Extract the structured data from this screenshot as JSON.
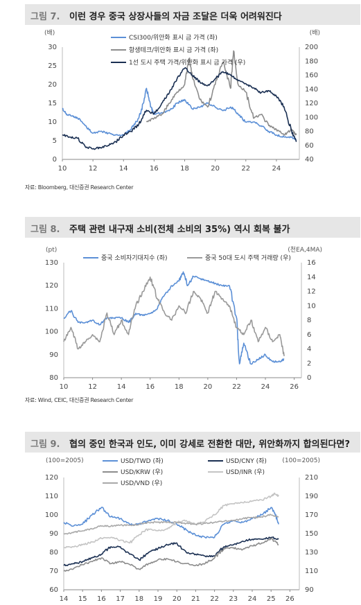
{
  "figures": [
    {
      "number": "그림 7.",
      "title": "이런 경우 중국 상장사들의 자금 조달은 더욱 어려워진다",
      "source": "자료: Bloomberg, 대신증권 Research Center",
      "left_unit": "(배)",
      "right_unit": "(배)",
      "x_ticks": [
        "10",
        "12",
        "14",
        "16",
        "18",
        "20",
        "22",
        "24"
      ],
      "y_ticks_left": [
        "0",
        "5",
        "10",
        "15",
        "20",
        "25",
        "30"
      ],
      "y_ticks_right": [
        "40",
        "60",
        "80",
        "100",
        "120",
        "140",
        "160",
        "180",
        "200"
      ],
      "legend": [
        "CSI300/위안화 표시 금 가격 (좌)",
        "항생테크/위안화 표시 금 가격 (좌)",
        "1선 도시 주택 가격/위안화 표시 금 가격 (우)"
      ],
      "colors": [
        "#5b8fd6",
        "#8c8c8c",
        "#1a2f52"
      ]
    },
    {
      "number": "그림 8.",
      "title": "주택 관련 내구재 소비(전체 소비의 35%) 역시 회복 불가",
      "source": "자료: Wind, CEIC, 대신증권 Research Center",
      "left_unit": "(pt)",
      "right_unit": "(천EA,4MA)",
      "x_ticks": [
        "10",
        "12",
        "14",
        "16",
        "18",
        "20",
        "22",
        "24",
        "26"
      ],
      "y_ticks_left": [
        "80",
        "90",
        "100",
        "110",
        "120",
        "130"
      ],
      "y_ticks_right": [
        "0",
        "2",
        "4",
        "6",
        "8",
        "10",
        "12",
        "14",
        "16"
      ],
      "legend": [
        "중국 소비자기대지수 (좌)",
        "중국 50대 도시 주택 거래량 (우)"
      ],
      "colors": [
        "#5b8fd6",
        "#999999"
      ]
    },
    {
      "number": "그림 9.",
      "title": "협의 중인 한국과 인도, 이미 강세로 전환한 대만, 위안화까지 합의된다면?",
      "source": "",
      "left_unit": "(100=2005)",
      "right_unit": "(100=2005)",
      "x_ticks": [
        "14",
        "15",
        "16",
        "17",
        "18",
        "19",
        "20",
        "21",
        "22",
        "23",
        "24",
        "25",
        "26"
      ],
      "y_ticks_left": [
        "60",
        "70",
        "80",
        "90",
        "100",
        "110",
        "120"
      ],
      "y_ticks_right": [
        "90",
        "110",
        "130",
        "150",
        "170",
        "190",
        "210"
      ],
      "legend": [
        "USD/TWD (좌)",
        "USD/CNY (좌)",
        "USD/KRW (우)",
        "USD/INR (우)",
        "USD/VND (우)"
      ],
      "colors": [
        "#5b8fd6",
        "#1a2f52",
        "#8c8c8c",
        "#c4c4c4",
        "#a8a8a8"
      ]
    }
  ],
  "chart_data": [
    {
      "type": "line",
      "title": "이런 경우 중국 상장사들의 자금 조달은 더욱 어려워진다",
      "x_range": [
        10,
        25.5
      ],
      "ylim_left": [
        0,
        30
      ],
      "ylim_right": [
        40,
        200
      ],
      "series": [
        {
          "name": "CSI300/위안화 표시 금 가격 (좌)",
          "axis": "left",
          "x": [
            10,
            10.3,
            10.7,
            11,
            11.5,
            12,
            12.5,
            13,
            13.5,
            14,
            14.5,
            15,
            15.3,
            15.5,
            15.8,
            16,
            16.5,
            17,
            17.5,
            18,
            18.5,
            19,
            19.5,
            20,
            20.5,
            21,
            21.2,
            21.5,
            22,
            22.5,
            23,
            23.5,
            24,
            24.5,
            25,
            25.3
          ],
          "y": [
            13.5,
            12,
            11.5,
            11,
            9,
            7,
            7.5,
            7,
            6.5,
            6.5,
            8,
            11,
            15,
            19,
            14,
            12,
            12.5,
            13,
            15,
            16,
            13.5,
            14,
            15,
            14,
            13,
            14,
            13.5,
            12,
            10,
            10,
            9,
            7.5,
            6.5,
            6,
            6,
            5
          ]
        },
        {
          "name": "항생테크/위안화 표시 금 가격 (좌)",
          "axis": "left",
          "x": [
            15.5,
            16,
            16.5,
            17,
            17.5,
            18,
            18.3,
            18.5,
            19,
            19.5,
            20,
            20.5,
            21,
            21.2,
            21.5,
            22,
            22.5,
            23,
            23.5,
            24,
            24.5,
            25,
            25.3
          ],
          "y": [
            10,
            11,
            12,
            15,
            18,
            20,
            27,
            22,
            16,
            14,
            20,
            26,
            19,
            29,
            20,
            18,
            11,
            12,
            9,
            8,
            6.5,
            8,
            6.5
          ]
        },
        {
          "name": "1선 도시 주택 가격/위안화 표시 금 가격 (우)",
          "axis": "right",
          "x": [
            10,
            10.5,
            11,
            11.5,
            12,
            12.5,
            13,
            13.5,
            14,
            14.5,
            15,
            15.5,
            16,
            16.5,
            17,
            17.5,
            18,
            18.5,
            19,
            19.5,
            20,
            20.5,
            21,
            21.5,
            22,
            22.5,
            23,
            23.5,
            24,
            24.5,
            25,
            25.3
          ],
          "y": [
            75,
            72,
            70,
            58,
            55,
            57,
            60,
            65,
            75,
            80,
            90,
            110,
            105,
            120,
            135,
            155,
            170,
            160,
            150,
            145,
            155,
            165,
            160,
            152,
            148,
            142,
            135,
            138,
            130,
            115,
            80,
            65
          ]
        }
      ]
    },
    {
      "type": "line",
      "title": "주택 관련 내구재 소비(전체 소비의 35%) 역시 회복 불가",
      "x_range": [
        10,
        26.5
      ],
      "ylim_left": [
        80,
        130
      ],
      "ylim_right": [
        0,
        16
      ],
      "series": [
        {
          "name": "중국 소비자기대지수 (좌)",
          "axis": "left",
          "x": [
            10,
            10.5,
            11,
            11.5,
            12,
            12.5,
            13,
            13.5,
            14,
            14.5,
            15,
            15.5,
            16,
            16.5,
            17,
            17.5,
            18,
            18.3,
            18.6,
            19,
            19.5,
            20,
            20.5,
            21,
            21.5,
            22,
            22.2,
            22.5,
            23,
            23.5,
            24,
            24.5,
            25,
            25.3
          ],
          "y": [
            106,
            109,
            104,
            104,
            105,
            103,
            106,
            106,
            106,
            104,
            108,
            107,
            108,
            110,
            116,
            120,
            122,
            126,
            120,
            124,
            123,
            122,
            121,
            120,
            120,
            106,
            86,
            95,
            86,
            88,
            90,
            87,
            87,
            88
          ]
        },
        {
          "name": "중국 50대 도시 주택 거래량 (우)",
          "axis": "right",
          "x": [
            10,
            10.5,
            11,
            11.5,
            12,
            12.5,
            13,
            13.5,
            14,
            14.5,
            15,
            15.5,
            16,
            16.5,
            17,
            17.5,
            18,
            18.5,
            19,
            19.5,
            20,
            20.5,
            21,
            21.5,
            22,
            22.5,
            23,
            23.5,
            24,
            24.5,
            25,
            25.3
          ],
          "y": [
            5,
            7,
            4,
            5,
            6,
            5,
            9,
            6,
            8,
            6,
            10,
            12,
            14,
            11,
            9,
            8,
            10,
            9,
            12,
            11,
            9,
            12,
            11,
            10,
            7,
            6,
            8,
            5,
            7,
            5,
            6,
            3
          ]
        }
      ]
    },
    {
      "type": "line",
      "title": "협의 중인 한국과 인도, 이미 강세로 전환한 대만, 위안화까지 합의된다면?",
      "x_range": [
        14,
        26.5
      ],
      "ylim_left": [
        60,
        120
      ],
      "ylim_right": [
        90,
        210
      ],
      "series": [
        {
          "name": "USD/TWD (좌)",
          "axis": "left",
          "x": [
            14,
            14.5,
            15,
            15.5,
            16,
            16.5,
            17,
            17.5,
            18,
            18.5,
            19,
            19.5,
            20,
            20.5,
            21,
            21.5,
            22,
            22.5,
            23,
            23.5,
            24,
            24.5,
            25,
            25.2,
            25.4
          ],
          "y": [
            96,
            94,
            95,
            100,
            104,
            99,
            98,
            95,
            95,
            97,
            98,
            97,
            95,
            92,
            89,
            88,
            88,
            95,
            97,
            96,
            98,
            100,
            104,
            101,
            95
          ]
        },
        {
          "name": "USD/CNY (좌)",
          "axis": "left",
          "x": [
            14,
            14.5,
            15,
            15.5,
            16,
            16.5,
            17,
            17.5,
            18,
            18.5,
            19,
            19.5,
            20,
            20.5,
            21,
            21.5,
            22,
            22.5,
            23,
            23.5,
            24,
            24.5,
            25,
            25.4
          ],
          "y": [
            73,
            74,
            75,
            77,
            79,
            83,
            83,
            79,
            76,
            80,
            82,
            84,
            85,
            80,
            79,
            78,
            78,
            83,
            84,
            86,
            87,
            87,
            88,
            87
          ]
        },
        {
          "name": "USD/KRW (우)",
          "axis": "right",
          "x": [
            14,
            14.5,
            15,
            15.5,
            16,
            16.5,
            17,
            17.5,
            18,
            18.5,
            19,
            19.5,
            20,
            20.5,
            21,
            21.5,
            22,
            22.5,
            23,
            23.5,
            24,
            24.5,
            25,
            25.4
          ],
          "y": [
            110,
            112,
            117,
            120,
            124,
            118,
            120,
            117,
            112,
            118,
            122,
            123,
            120,
            118,
            116,
            118,
            124,
            134,
            135,
            133,
            137,
            140,
            145,
            138
          ]
        },
        {
          "name": "USD/INR (우)",
          "axis": "right",
          "x": [
            14,
            14.5,
            15,
            15.5,
            16,
            16.5,
            17,
            17.5,
            18,
            18.5,
            19,
            19.5,
            20,
            20.5,
            21,
            21.5,
            22,
            22.5,
            23,
            23.5,
            24,
            24.5,
            25,
            25.2,
            25.4
          ],
          "y": [
            135,
            136,
            138,
            141,
            145,
            146,
            143,
            140,
            149,
            155,
            153,
            155,
            162,
            164,
            160,
            163,
            170,
            180,
            182,
            183,
            185,
            186,
            190,
            193,
            190
          ]
        },
        {
          "name": "USD/VND (우)",
          "axis": "right",
          "x": [
            14,
            14.5,
            15,
            15.5,
            16,
            16.5,
            17,
            17.5,
            18,
            18.5,
            19,
            19.5,
            20,
            20.5,
            21,
            21.5,
            22,
            22.5,
            23,
            23.5,
            24,
            24.5,
            25,
            25.4
          ],
          "y": [
            150,
            151,
            153,
            155,
            158,
            158,
            159,
            159,
            160,
            162,
            162,
            162,
            162,
            161,
            160,
            161,
            162,
            163,
            164,
            166,
            167,
            168,
            170,
            168
          ]
        }
      ]
    }
  ]
}
